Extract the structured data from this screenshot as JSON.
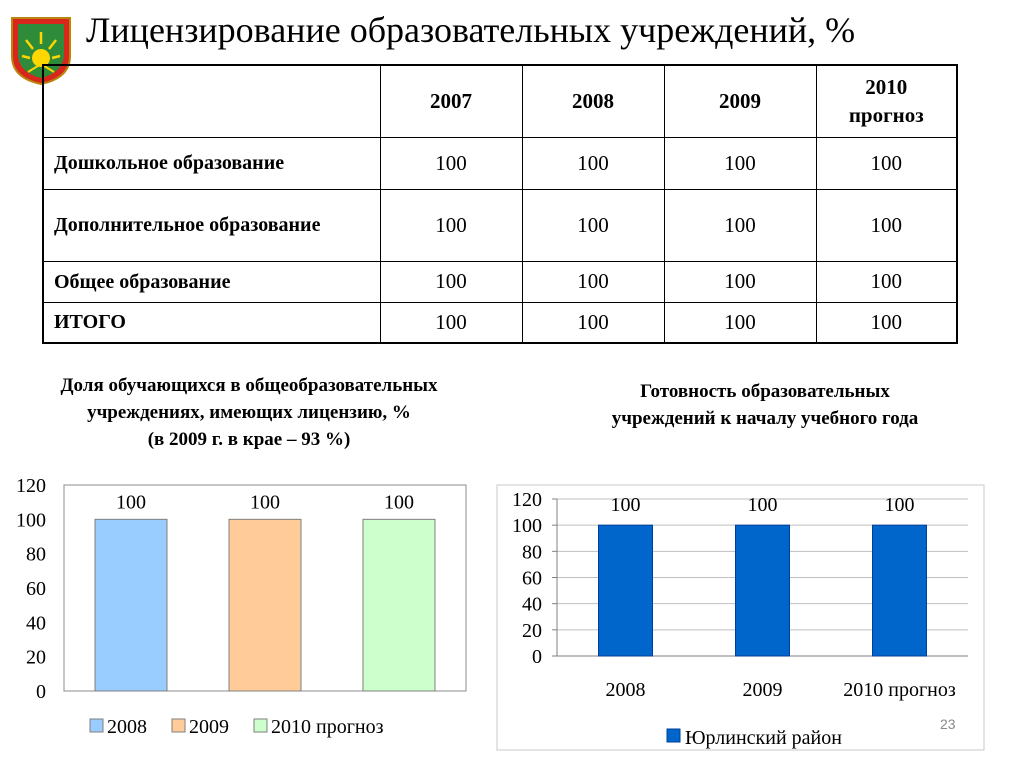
{
  "slide": {
    "title": "Лицензирование образовательных учреждений, %",
    "page_number": "23"
  },
  "table": {
    "columns": [
      "",
      "2007",
      "2008",
      "2009",
      "2010\nпрогноз"
    ],
    "rows": [
      {
        "label": "Дошкольное образование",
        "values": [
          "100",
          "100",
          "100",
          "100"
        ]
      },
      {
        "label": "Дополнительное образование",
        "values": [
          "100",
          "100",
          "100",
          "100"
        ]
      },
      {
        "label": "Общее образование",
        "values": [
          "100",
          "100",
          "100",
          "100"
        ]
      },
      {
        "label": "ИТОГО",
        "values": [
          "100",
          "100",
          "100",
          "100"
        ]
      }
    ]
  },
  "chart_data": [
    {
      "type": "bar",
      "title": "Доля обучающихся в общеобразовательных учреждениях, имеющих лицензию, % (в 2009 г. в крае – 93 %)",
      "title_lines": [
        "Доля обучающихся в общеобразовательных",
        "учреждениях, имеющих лицензию, %",
        "(в 2009 г. в крае – 93 %)"
      ],
      "series": [
        {
          "name": "2008",
          "values": [
            100
          ],
          "color": "#99ccff"
        },
        {
          "name": "2009",
          "values": [
            100
          ],
          "color": "#ffcc99"
        },
        {
          "name": "2010 прогноз",
          "values": [
            100
          ],
          "color": "#ccffcc"
        }
      ],
      "ylim": [
        0,
        120
      ],
      "yticks": [
        0,
        20,
        40,
        60,
        80,
        100,
        120
      ],
      "data_labels": [
        "100",
        "100",
        "100"
      ],
      "legend": "bottom",
      "grid": false
    },
    {
      "type": "bar",
      "title": "Готовность образовательных учреждений к началу учебного года",
      "title_lines": [
        "Готовность образовательных",
        "учреждений к началу учебного года"
      ],
      "categories": [
        "2008",
        "2009",
        "2010 прогноз"
      ],
      "series": [
        {
          "name": "Юрлинский район",
          "values": [
            100,
            100,
            100
          ],
          "color": "#0066cc"
        }
      ],
      "ylim": [
        0,
        120
      ],
      "yticks": [
        0,
        20,
        40,
        60,
        80,
        100,
        120
      ],
      "data_labels": [
        "100",
        "100",
        "100"
      ],
      "legend": "bottom",
      "grid": true
    }
  ]
}
